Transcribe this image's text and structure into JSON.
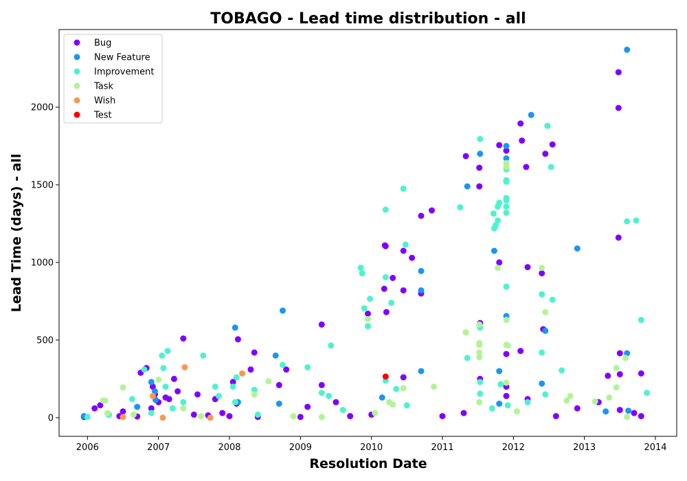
{
  "chart_data": {
    "type": "scatter",
    "title": "TOBAGO - Lead time distribution - all",
    "xlabel": "Resolution Date",
    "ylabel": "Lead Time (days) - all",
    "xlim": [
      2005.6,
      2014.3
    ],
    "ylim": [
      -120,
      2500
    ],
    "x_ticks": [
      2006,
      2007,
      2008,
      2009,
      2010,
      2011,
      2012,
      2013,
      2014
    ],
    "y_ticks": [
      0,
      500,
      1000,
      1500,
      2000
    ],
    "grid": false,
    "legend_position": "top-left",
    "series": [
      {
        "name": "Bug",
        "color": "#8000ff",
        "points": [
          [
            2005.95,
            5
          ],
          [
            2006.1,
            60
          ],
          [
            2006.18,
            80
          ],
          [
            2006.3,
            20
          ],
          [
            2006.45,
            10
          ],
          [
            2006.5,
            40
          ],
          [
            2006.7,
            8
          ],
          [
            2006.75,
            290
          ],
          [
            2006.83,
            320
          ],
          [
            2006.9,
            60
          ],
          [
            2006.92,
            200
          ],
          [
            2006.95,
            150
          ],
          [
            2007.0,
            100
          ],
          [
            2007.1,
            130
          ],
          [
            2007.15,
            120
          ],
          [
            2007.22,
            250
          ],
          [
            2007.27,
            170
          ],
          [
            2007.35,
            510
          ],
          [
            2007.5,
            20
          ],
          [
            2007.55,
            150
          ],
          [
            2007.7,
            15
          ],
          [
            2007.8,
            120
          ],
          [
            2007.9,
            30
          ],
          [
            2008.0,
            10
          ],
          [
            2008.05,
            230
          ],
          [
            2008.1,
            90
          ],
          [
            2008.12,
            505
          ],
          [
            2008.3,
            310
          ],
          [
            2008.35,
            420
          ],
          [
            2008.4,
            5
          ],
          [
            2008.7,
            210
          ],
          [
            2008.8,
            310
          ],
          [
            2009.0,
            5
          ],
          [
            2009.1,
            70
          ],
          [
            2009.3,
            600
          ],
          [
            2009.3,
            210
          ],
          [
            2009.5,
            100
          ],
          [
            2009.7,
            10
          ],
          [
            2009.95,
            670
          ],
          [
            2010.0,
            20
          ],
          [
            2010.18,
            830
          ],
          [
            2010.19,
            1110
          ],
          [
            2010.2,
            1105
          ],
          [
            2010.21,
            680
          ],
          [
            2010.3,
            900
          ],
          [
            2010.45,
            820
          ],
          [
            2010.45,
            1075
          ],
          [
            2010.45,
            260
          ],
          [
            2010.57,
            1030
          ],
          [
            2010.7,
            1300
          ],
          [
            2010.7,
            800
          ],
          [
            2010.85,
            1335
          ],
          [
            2011.0,
            10
          ],
          [
            2011.3,
            30
          ],
          [
            2011.33,
            1685
          ],
          [
            2011.52,
            1490
          ],
          [
            2011.52,
            1610
          ],
          [
            2011.53,
            610
          ],
          [
            2011.53,
            250
          ],
          [
            2011.8,
            1755
          ],
          [
            2011.8,
            1000
          ],
          [
            2011.9,
            1720
          ],
          [
            2011.9,
            410
          ],
          [
            2011.9,
            200
          ],
          [
            2011.9,
            140
          ],
          [
            2012.1,
            430
          ],
          [
            2012.12,
            1785
          ],
          [
            2012.18,
            1615
          ],
          [
            2012.2,
            970
          ],
          [
            2012.1,
            1895
          ],
          [
            2012.2,
            120
          ],
          [
            2012.4,
            930
          ],
          [
            2012.42,
            570
          ],
          [
            2012.45,
            1700
          ],
          [
            2012.55,
            1760
          ],
          [
            2012.6,
            10
          ],
          [
            2012.9,
            60
          ],
          [
            2013.2,
            100
          ],
          [
            2013.33,
            270
          ],
          [
            2013.48,
            2225
          ],
          [
            2013.48,
            1995
          ],
          [
            2013.48,
            1160
          ],
          [
            2013.5,
            415
          ],
          [
            2013.5,
            280
          ],
          [
            2013.5,
            50
          ],
          [
            2013.7,
            30
          ],
          [
            2013.8,
            285
          ],
          [
            2013.8,
            10
          ]
        ]
      },
      {
        "name": "New Feature",
        "color": "#1996f3",
        "points": [
          [
            2005.95,
            10
          ],
          [
            2006.7,
            70
          ],
          [
            2006.9,
            230
          ],
          [
            2006.95,
            170
          ],
          [
            2006.96,
            115
          ],
          [
            2008.08,
            580
          ],
          [
            2008.12,
            100
          ],
          [
            2008.65,
            400
          ],
          [
            2008.7,
            90
          ],
          [
            2008.75,
            690
          ],
          [
            2010.15,
            130
          ],
          [
            2010.7,
            300
          ],
          [
            2010.7,
            820
          ],
          [
            2010.7,
            945
          ],
          [
            2011.35,
            1490
          ],
          [
            2011.53,
            1700
          ],
          [
            2011.73,
            1075
          ],
          [
            2011.8,
            90
          ],
          [
            2011.8,
            300
          ],
          [
            2011.9,
            1750
          ],
          [
            2011.9,
            1670
          ],
          [
            2011.9,
            655
          ],
          [
            2012.25,
            1950
          ],
          [
            2012.4,
            220
          ],
          [
            2012.45,
            560
          ],
          [
            2012.9,
            1090
          ],
          [
            2013.3,
            40
          ],
          [
            2013.6,
            415
          ],
          [
            2013.6,
            2370
          ],
          [
            2013.62,
            45
          ]
        ]
      },
      {
        "name": "Improvement",
        "color": "#4df3ce",
        "points": [
          [
            2006.0,
            5
          ],
          [
            2006.3,
            20
          ],
          [
            2006.63,
            120
          ],
          [
            2006.8,
            310
          ],
          [
            2006.9,
            30
          ],
          [
            2007.05,
            400
          ],
          [
            2007.07,
            320
          ],
          [
            2007.1,
            200
          ],
          [
            2007.13,
            430
          ],
          [
            2007.2,
            60
          ],
          [
            2007.35,
            100
          ],
          [
            2007.63,
            400
          ],
          [
            2007.8,
            200
          ],
          [
            2007.85,
            140
          ],
          [
            2008.05,
            200
          ],
          [
            2008.08,
            100
          ],
          [
            2008.1,
            260
          ],
          [
            2008.35,
            180
          ],
          [
            2008.4,
            20
          ],
          [
            2008.75,
            340
          ],
          [
            2009.1,
            325
          ],
          [
            2009.3,
            160
          ],
          [
            2009.4,
            140
          ],
          [
            2009.43,
            465
          ],
          [
            2009.6,
            50
          ],
          [
            2009.85,
            965
          ],
          [
            2009.87,
            930
          ],
          [
            2009.9,
            705
          ],
          [
            2009.95,
            590
          ],
          [
            2009.98,
            765
          ],
          [
            2010.2,
            1340
          ],
          [
            2010.2,
            905
          ],
          [
            2010.2,
            240
          ],
          [
            2010.28,
            740
          ],
          [
            2010.35,
            185
          ],
          [
            2010.45,
            1475
          ],
          [
            2010.48,
            1115
          ],
          [
            2010.5,
            80
          ],
          [
            2011.25,
            1355
          ],
          [
            2011.35,
            385
          ],
          [
            2011.53,
            1795
          ],
          [
            2011.53,
            580
          ],
          [
            2011.53,
            230
          ],
          [
            2011.53,
            155
          ],
          [
            2011.7,
            60
          ],
          [
            2011.72,
            1315
          ],
          [
            2011.73,
            1220
          ],
          [
            2011.75,
            1240
          ],
          [
            2011.78,
            1360
          ],
          [
            2011.8,
            1385
          ],
          [
            2011.78,
            1270
          ],
          [
            2011.82,
            215
          ],
          [
            2011.9,
            1600
          ],
          [
            2011.9,
            1530
          ],
          [
            2011.9,
            1520
          ],
          [
            2011.9,
            1415
          ],
          [
            2011.9,
            1400
          ],
          [
            2011.9,
            1360
          ],
          [
            2011.9,
            1320
          ],
          [
            2011.9,
            845
          ],
          [
            2011.92,
            80
          ],
          [
            2012.2,
            100
          ],
          [
            2012.4,
            795
          ],
          [
            2012.4,
            420
          ],
          [
            2012.45,
            150
          ],
          [
            2012.48,
            1880
          ],
          [
            2012.53,
            1615
          ],
          [
            2012.55,
            760
          ],
          [
            2012.68,
            305
          ],
          [
            2013.6,
            1265
          ],
          [
            2013.73,
            1270
          ],
          [
            2013.8,
            630
          ],
          [
            2013.88,
            160
          ]
        ]
      },
      {
        "name": "Task",
        "color": "#b3f396",
        "points": [
          [
            2006.22,
            110
          ],
          [
            2006.25,
            110
          ],
          [
            2006.28,
            30
          ],
          [
            2006.5,
            195
          ],
          [
            2006.65,
            20
          ],
          [
            2007.0,
            245
          ],
          [
            2007.35,
            60
          ],
          [
            2007.6,
            10
          ],
          [
            2008.35,
            150
          ],
          [
            2008.55,
            235
          ],
          [
            2008.9,
            10
          ],
          [
            2009.3,
            5
          ],
          [
            2009.95,
            635
          ],
          [
            2010.05,
            30
          ],
          [
            2010.25,
            100
          ],
          [
            2010.3,
            85
          ],
          [
            2010.45,
            190
          ],
          [
            2010.88,
            200
          ],
          [
            2011.33,
            550
          ],
          [
            2011.52,
            600
          ],
          [
            2011.52,
            480
          ],
          [
            2011.52,
            470
          ],
          [
            2011.52,
            420
          ],
          [
            2011.52,
            390
          ],
          [
            2011.52,
            100
          ],
          [
            2011.78,
            965
          ],
          [
            2011.9,
            1640
          ],
          [
            2011.9,
            1615
          ],
          [
            2011.9,
            630
          ],
          [
            2011.9,
            470
          ],
          [
            2011.92,
            465
          ],
          [
            2011.9,
            225
          ],
          [
            2012.05,
            40
          ],
          [
            2012.4,
            965
          ],
          [
            2012.45,
            680
          ],
          [
            2012.75,
            110
          ],
          [
            2012.8,
            140
          ],
          [
            2013.15,
            105
          ],
          [
            2013.35,
            130
          ],
          [
            2013.45,
            320
          ],
          [
            2013.45,
            195
          ],
          [
            2013.58,
            385
          ],
          [
            2013.6,
            5
          ]
        ]
      },
      {
        "name": "Wish",
        "color": "#ff964e",
        "points": [
          [
            2006.5,
            5
          ],
          [
            2006.92,
            140
          ],
          [
            2007.06,
            0
          ],
          [
            2007.37,
            325
          ],
          [
            2007.73,
            0
          ],
          [
            2008.18,
            285
          ]
        ]
      },
      {
        "name": "Test",
        "color": "#ff0000",
        "points": [
          [
            2010.2,
            265
          ]
        ]
      }
    ]
  }
}
